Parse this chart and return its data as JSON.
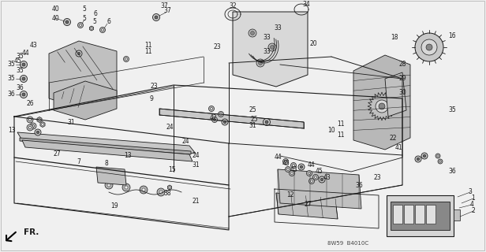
{
  "bg_color": "#f0f0f0",
  "line_color": "#1a1a1a",
  "text_color": "#1a1a1a",
  "diagram_code": "8W59  B4010C",
  "figsize": [
    6.16,
    3.2
  ],
  "dpi": 100
}
